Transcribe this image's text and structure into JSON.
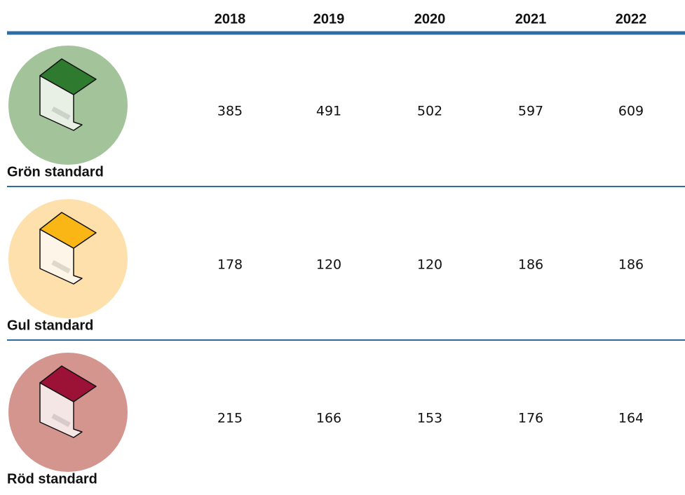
{
  "table": {
    "columns": [
      "2018",
      "2019",
      "2020",
      "2021",
      "2022"
    ],
    "rows": [
      {
        "label": "Grön standard",
        "values": [
          385,
          491,
          502,
          597,
          609
        ]
      },
      {
        "label": "Gul standard",
        "values": [
          178,
          120,
          120,
          186,
          186
        ]
      },
      {
        "label": "Röd standard",
        "values": [
          215,
          166,
          153,
          176,
          164
        ]
      }
    ]
  }
}
